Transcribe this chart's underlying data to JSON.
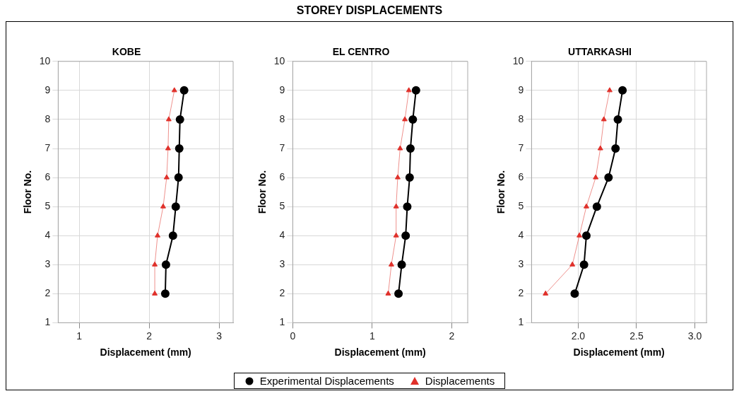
{
  "chart_data": [
    {
      "type": "line",
      "title": "KOBE",
      "xlabel": "Displacement (mm)",
      "ylabel": "Floor No.",
      "annotations": [
        "STOREY DISPLACEMENTS"
      ],
      "xlim": [
        0.7,
        3.2
      ],
      "xticks": [
        1,
        2,
        3
      ],
      "ylim": [
        1,
        10
      ],
      "yticks": [
        1,
        2,
        3,
        4,
        5,
        6,
        7,
        8,
        9,
        10
      ],
      "grid": true,
      "legend": "bottom",
      "series": [
        {
          "name": "Experimental Displacements",
          "color": "#000000",
          "marker": "circle",
          "x": [
            2.23,
            2.24,
            2.34,
            2.38,
            2.42,
            2.43,
            2.44,
            2.5
          ],
          "values": [
            2,
            3,
            4,
            5,
            6,
            7,
            8,
            9
          ]
        },
        {
          "name": "Displacements",
          "color": "#e0302a",
          "marker": "triangle",
          "x": [
            2.08,
            2.08,
            2.12,
            2.2,
            2.25,
            2.27,
            2.28,
            2.36
          ],
          "values": [
            2,
            3,
            4,
            5,
            6,
            7,
            8,
            9
          ]
        }
      ]
    },
    {
      "type": "line",
      "title": "EL CENTRO",
      "xlabel": "Displacement (mm)",
      "ylabel": "Floor No.",
      "xlim": [
        0,
        2.2
      ],
      "xticks": [
        0,
        1,
        2
      ],
      "ylim": [
        1,
        10
      ],
      "yticks": [
        1,
        2,
        3,
        4,
        5,
        6,
        7,
        8,
        9,
        10
      ],
      "grid": true,
      "series": [
        {
          "color": "#000000",
          "marker": "circle",
          "x": [
            1.33,
            1.37,
            1.42,
            1.44,
            1.47,
            1.48,
            1.51,
            1.55
          ],
          "values": [
            2,
            3,
            4,
            5,
            6,
            7,
            8,
            9
          ]
        },
        {
          "color": "#e0302a",
          "marker": "triangle",
          "x": [
            1.2,
            1.24,
            1.3,
            1.3,
            1.32,
            1.35,
            1.41,
            1.46
          ],
          "values": [
            2,
            3,
            4,
            5,
            6,
            7,
            8,
            9
          ]
        }
      ]
    },
    {
      "type": "line",
      "title": "UTTARKASHI",
      "xlabel": "Displacement (mm)",
      "ylabel": "Floor No.",
      "xlim": [
        1.6,
        3.1
      ],
      "xticks": [
        {
          "value": 2,
          "label": "2.0"
        },
        2.5,
        {
          "value": 3,
          "label": "3.0"
        }
      ],
      "ylim": [
        1,
        10
      ],
      "yticks": [
        1,
        2,
        3,
        4,
        5,
        6,
        7,
        8,
        9,
        10
      ],
      "grid": true,
      "series": [
        {
          "color": "#000000",
          "marker": "circle",
          "x": [
            1.97,
            2.05,
            2.07,
            2.16,
            2.26,
            2.32,
            2.34,
            2.38
          ],
          "values": [
            2,
            3,
            4,
            5,
            6,
            7,
            8,
            9
          ]
        },
        {
          "color": "#e0302a",
          "marker": "triangle",
          "x": [
            1.72,
            1.95,
            2.01,
            2.07,
            2.15,
            2.19,
            2.22,
            2.27
          ],
          "values": [
            2,
            3,
            4,
            5,
            6,
            7,
            8,
            9
          ]
        }
      ]
    }
  ]
}
